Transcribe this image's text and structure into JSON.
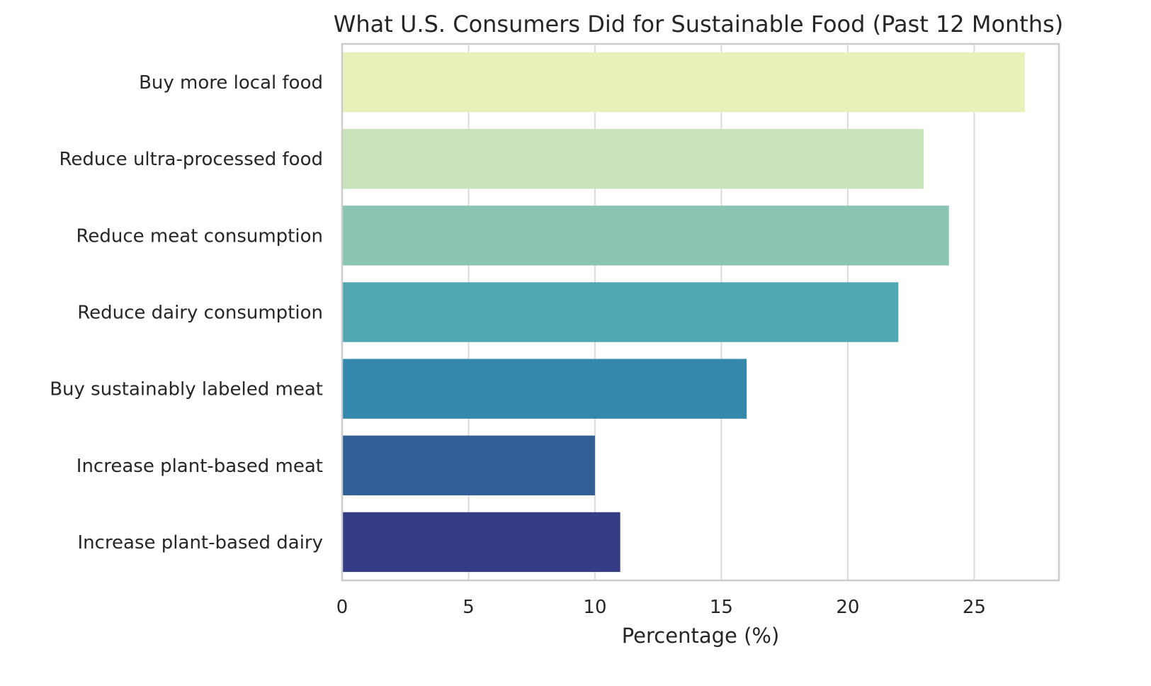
{
  "chart_data": {
    "type": "bar",
    "orientation": "horizontal",
    "title": "What U.S. Consumers Did for Sustainable Food (Past 12 Months)",
    "xlabel": "Percentage (%)",
    "ylabel": "",
    "xlim": [
      0,
      28.35
    ],
    "xticks": [
      0,
      5,
      10,
      15,
      20,
      25
    ],
    "grid": true,
    "categories": [
      "Buy more local food",
      "Reduce ultra-processed food",
      "Reduce meat consumption",
      "Reduce dairy consumption",
      "Buy sustainably labeled meat",
      "Increase plant-based meat",
      "Increase plant-based dairy"
    ],
    "values": [
      27,
      23,
      24,
      22,
      16,
      10,
      11
    ],
    "colors": [
      "#e8f1b9",
      "#c9e3bc",
      "#8ac4b3",
      "#51a8b3",
      "#3388ac",
      "#325f96",
      "#333c84"
    ]
  }
}
